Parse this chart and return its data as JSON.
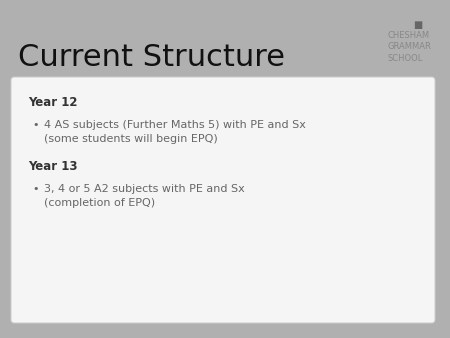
{
  "title": "Current Structure",
  "title_fontsize": 22,
  "title_color": "#111111",
  "school_name_lines": [
    "CHESHAM",
    "GRAMMAR",
    "SCHOOL"
  ],
  "school_name_color": "#888888",
  "school_name_fontsize": 6.0,
  "background_color": "#b0b0b0",
  "slide_bg_color": "#efefef",
  "box_bg_color": "#f5f5f5",
  "box_edge_color": "#cccccc",
  "year12_label": "Year 12",
  "year12_bullet_line1": "4 AS subjects (Further Maths 5) with PE and Sx",
  "year12_bullet_line2": "(some students will begin EPQ)",
  "year13_label": "Year 13",
  "year13_bullet_line1": "3, 4 or 5 A2 subjects with PE and Sx",
  "year13_bullet_line2": "(completion of EPQ)",
  "label_fontsize": 8.5,
  "bullet_fontsize": 8.0,
  "label_color": "#333333",
  "bullet_color": "#666666",
  "bullet_char": "•"
}
